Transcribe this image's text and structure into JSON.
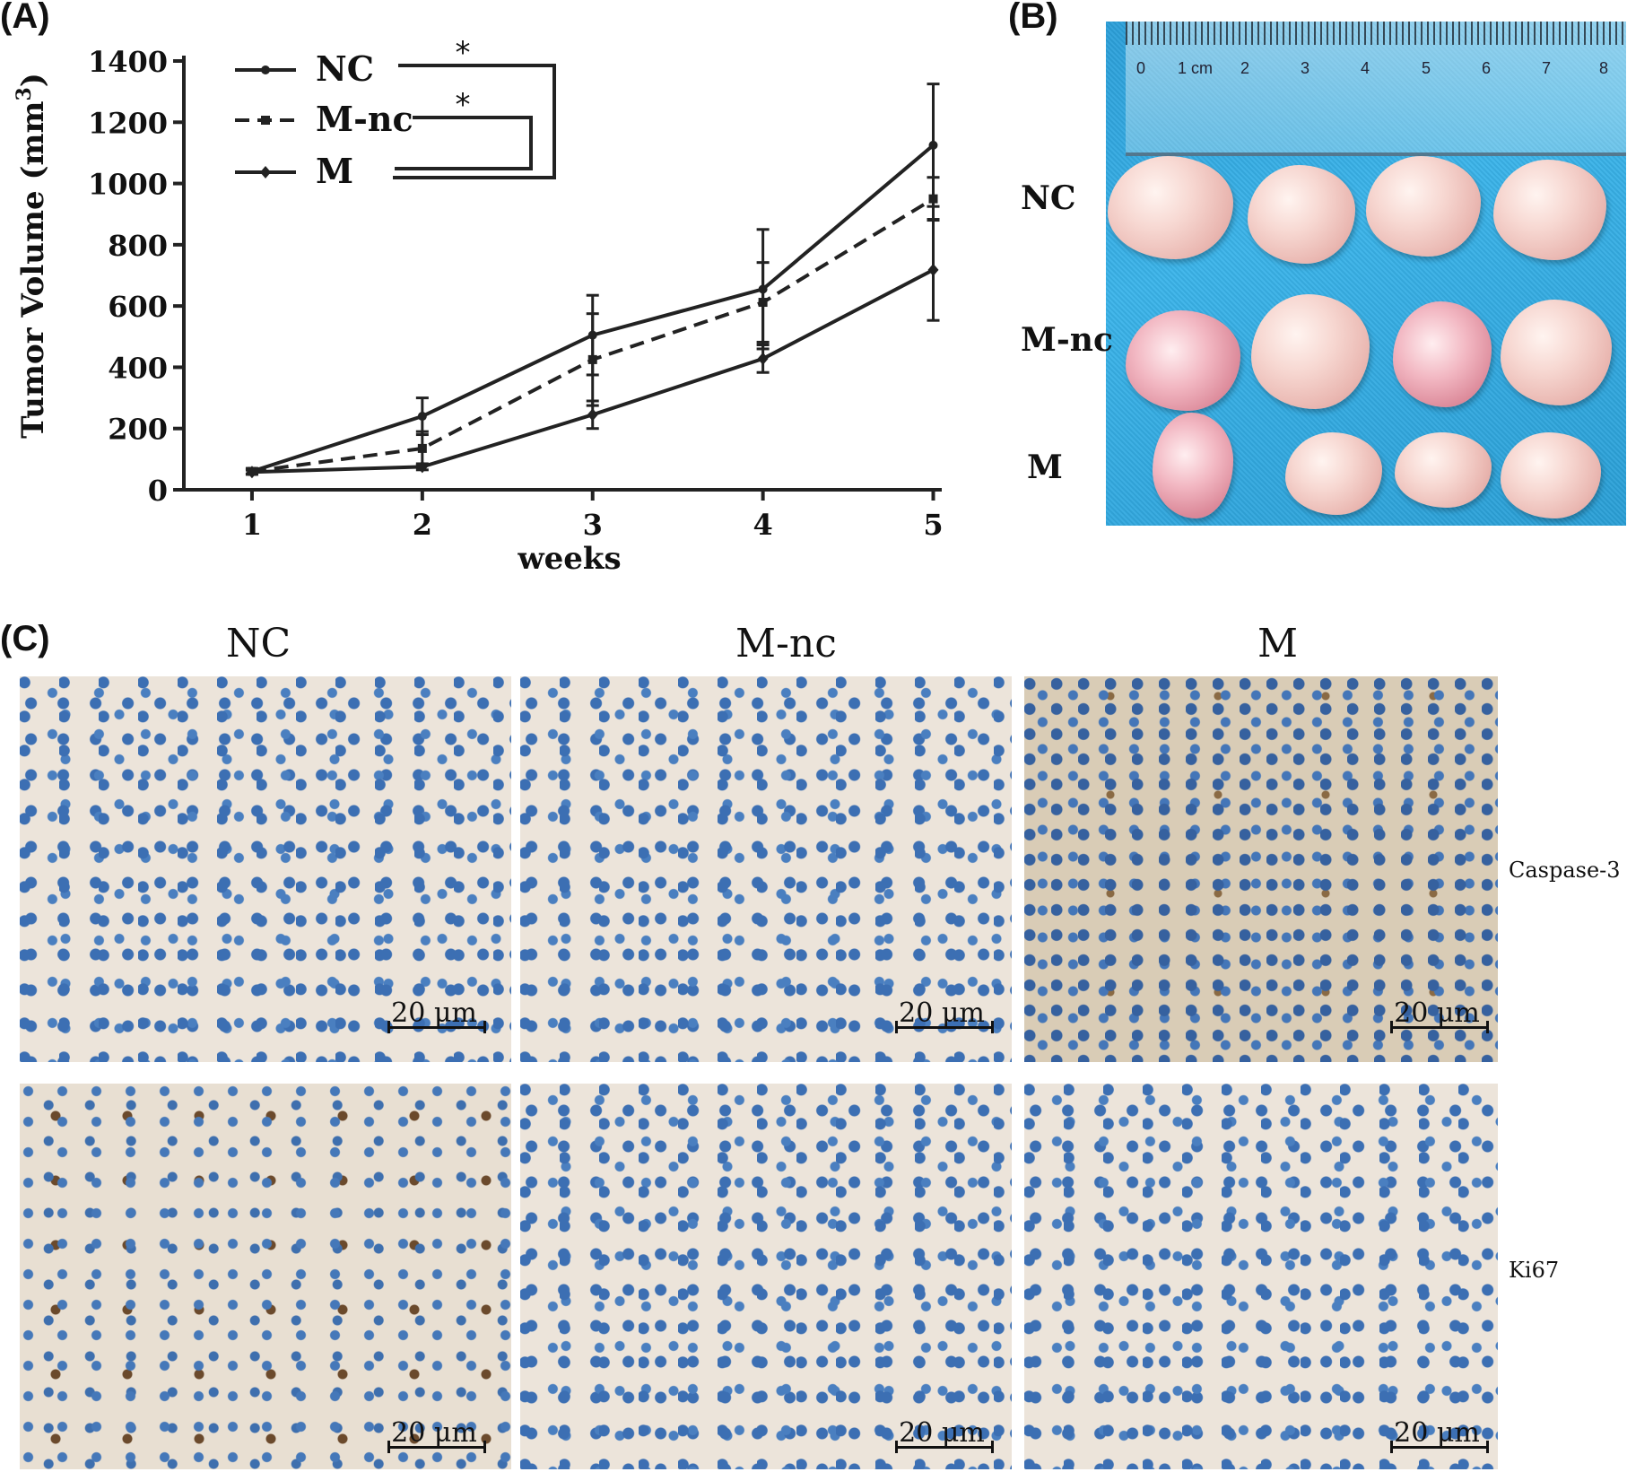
{
  "panels": {
    "a_letter": "(A)",
    "b_letter": "(B)",
    "c_letter": "(C)"
  },
  "chart_data": {
    "type": "line",
    "xlabel": "weeks",
    "ylabel": "Tumor Volume (mm",
    "ylabel_superscript": "3",
    "ylabel_close": ")",
    "x": [
      1,
      2,
      3,
      4,
      5
    ],
    "ylim": [
      0,
      1400
    ],
    "yticks": [
      0,
      200,
      400,
      600,
      800,
      1000,
      1200,
      1400
    ],
    "xticks": [
      1,
      2,
      3,
      4,
      5
    ],
    "legend_position": "top-left",
    "series": [
      {
        "name": "NC",
        "values": [
          60,
          240,
          505,
          655,
          1125
        ],
        "errors": [
          10,
          60,
          130,
          195,
          200
        ],
        "marker": "circle",
        "dash": "solid"
      },
      {
        "name": "M-nc",
        "values": [
          60,
          135,
          425,
          612,
          950
        ],
        "errors": [
          8,
          55,
          150,
          130,
          70
        ],
        "marker": "square",
        "dash": "dashed"
      },
      {
        "name": "M",
        "values": [
          58,
          75,
          245,
          428,
          718
        ],
        "errors": [
          6,
          10,
          45,
          45,
          165
        ],
        "marker": "diamond",
        "dash": "solid"
      }
    ],
    "significance": [
      {
        "between": [
          "NC",
          "M"
        ],
        "label": "*"
      },
      {
        "between": [
          "M-nc",
          "M"
        ],
        "label": "*"
      }
    ],
    "colors": {
      "line": "#222222"
    }
  },
  "tumor_photo": {
    "row_labels": [
      "NC",
      "M-nc",
      "M"
    ],
    "ruler_labels": [
      "0",
      "1 cm",
      "2",
      "3",
      "4",
      "5",
      "6",
      "7",
      "8"
    ],
    "background_color": "#2ea6df"
  },
  "ihc": {
    "column_headers": [
      "NC",
      "M-nc",
      "M"
    ],
    "row_labels": [
      "Caspase-3",
      "Ki67"
    ],
    "scale_bar_text": "20 μm"
  }
}
